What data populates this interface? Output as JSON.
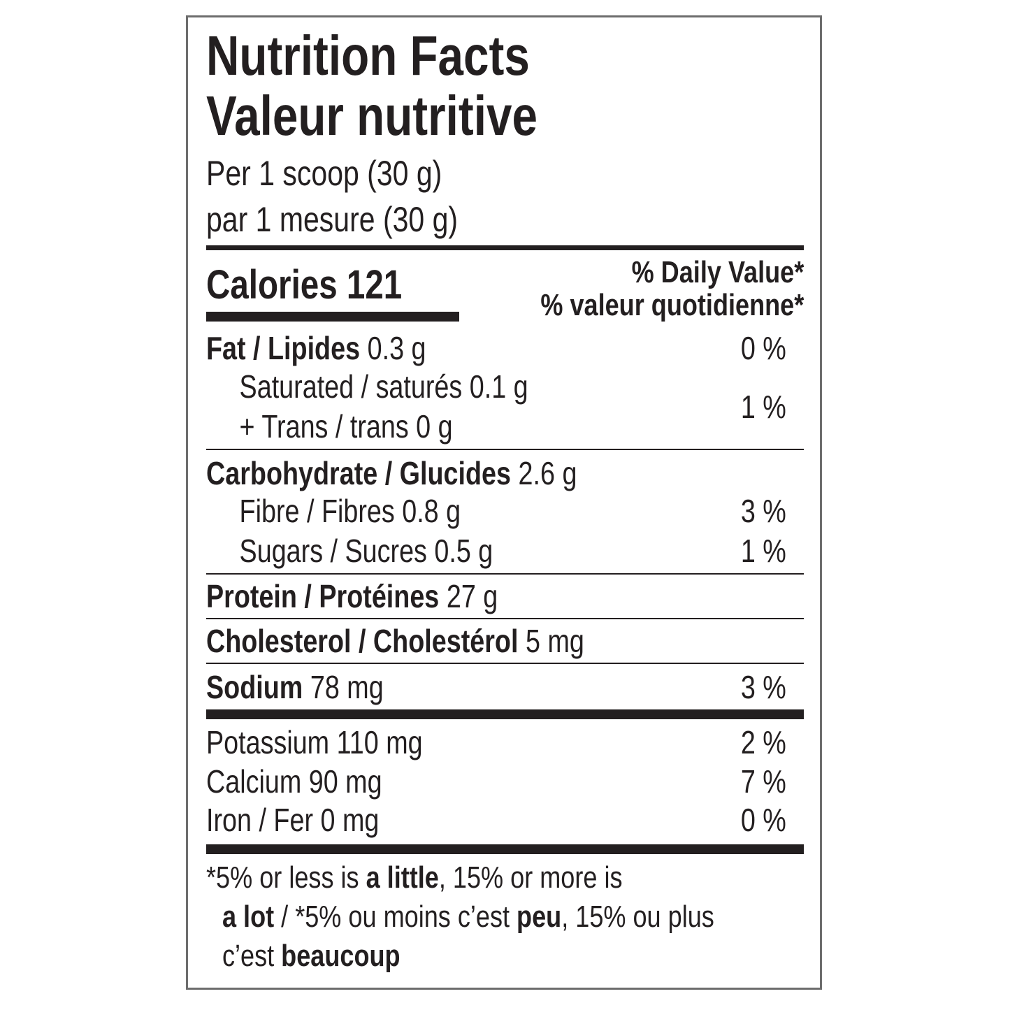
{
  "header": {
    "title": "Nutrition Facts",
    "title_fr": "Valeur nutritive",
    "serving": "Per 1 scoop (30 g)",
    "serving_fr": "par 1 mesure (30 g)"
  },
  "calories": "Calories 121",
  "daily_value_header": "% Daily Value*",
  "daily_value_header_fr": "% valeur quotidienne*",
  "rows": [
    {
      "label": "Fat / Lipides",
      "amount": "0.3 g",
      "dv": "0 %"
    },
    {
      "label": "Saturated / saturés 0.1 g",
      "label2": "+ Trans / trans 0 g",
      "dv": "1 %"
    },
    {
      "label": "Carbohydrate / Glucides",
      "amount": "2.6 g"
    },
    {
      "label": "Fibre / Fibres 0.8 g",
      "dv": "3 %"
    },
    {
      "label": "Sugars / Sucres 0.5 g",
      "dv": "1 %"
    },
    {
      "label": "Protein / Protéines",
      "amount": "27 g"
    },
    {
      "label": "Cholesterol / Cholestérol",
      "amount": "5 mg"
    },
    {
      "label": "Sodium",
      "amount": "78 mg",
      "dv": "3 %"
    },
    {
      "label": "Potassium 110 mg",
      "dv": "2 %"
    },
    {
      "label": "Calcium 90 mg",
      "dv": "7 %"
    },
    {
      "label": "Iron / Fer 0 mg",
      "dv": "0 %"
    }
  ],
  "footnote": [
    [
      {
        "text": "*5% or less is "
      },
      {
        "text": "a little",
        "bold": true
      },
      {
        "text": ", 15% or more is"
      }
    ],
    [
      {
        "text": "a lot",
        "bold": true
      },
      {
        "text": " / *5% ou moins c’est "
      },
      {
        "text": "peu",
        "bold": true
      },
      {
        "text": ", 15% ou plus"
      }
    ],
    [
      {
        "text": "c’est "
      },
      {
        "text": "beaucoup",
        "bold": true
      }
    ]
  ]
}
